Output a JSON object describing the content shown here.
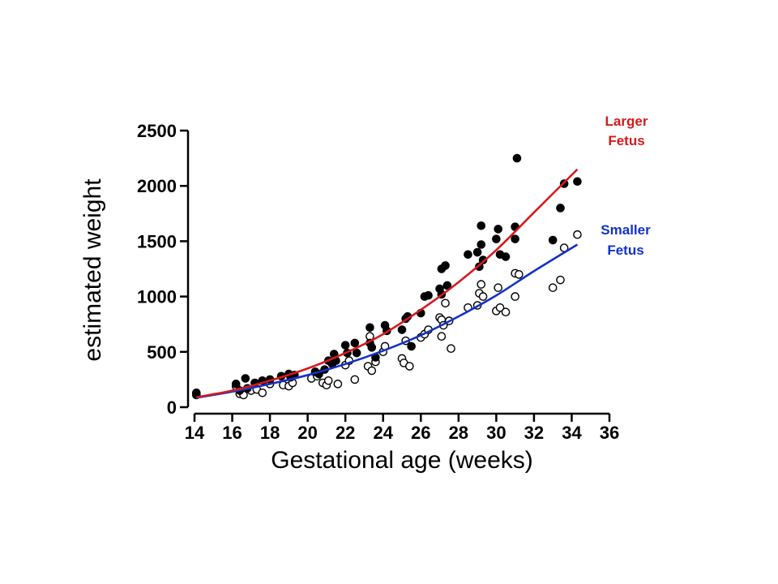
{
  "chart_data": {
    "type": "scatter",
    "xlabel": "Gestational age (weeks)",
    "ylabel": "estimated weight",
    "xlim": [
      14,
      36
    ],
    "ylim": [
      0,
      2500
    ],
    "x_ticks": [
      "14",
      "16",
      "18",
      "20",
      "22",
      "24",
      "26",
      "28",
      "30",
      "32",
      "34",
      "36"
    ],
    "y_ticks": [
      "0",
      "500",
      "1000",
      "1500",
      "2000",
      "2500"
    ],
    "grid": false,
    "series": [
      {
        "name": "Larger Fetus",
        "marker": "filled-circle",
        "marker_color": "#000000",
        "line_color": "#d7191c",
        "label_lines": [
          "Larger",
          "Fetus"
        ],
        "fit": [
          [
            14.1,
            90
          ],
          [
            16,
            150
          ],
          [
            18,
            240
          ],
          [
            20,
            350
          ],
          [
            22,
            490
          ],
          [
            24,
            660
          ],
          [
            26,
            880
          ],
          [
            28,
            1130
          ],
          [
            30,
            1420
          ],
          [
            32,
            1760
          ],
          [
            34.3,
            2150
          ]
        ],
        "points": [
          [
            14.1,
            130
          ],
          [
            14.1,
            120
          ],
          [
            16.2,
            210
          ],
          [
            16.4,
            150
          ],
          [
            16.7,
            260
          ],
          [
            16.8,
            170
          ],
          [
            17.2,
            220
          ],
          [
            17.6,
            240
          ],
          [
            18,
            250
          ],
          [
            18.6,
            280
          ],
          [
            19,
            300
          ],
          [
            19.1,
            270
          ],
          [
            19.3,
            290
          ],
          [
            20.4,
            320
          ],
          [
            20.6,
            300
          ],
          [
            20.9,
            340
          ],
          [
            21.1,
            420
          ],
          [
            21.3,
            390
          ],
          [
            21.4,
            480
          ],
          [
            21.5,
            420
          ],
          [
            22,
            560
          ],
          [
            22.1,
            490
          ],
          [
            22.5,
            580
          ],
          [
            22.6,
            490
          ],
          [
            23.3,
            720
          ],
          [
            23.3,
            580
          ],
          [
            23.4,
            540
          ],
          [
            23.6,
            450
          ],
          [
            24.1,
            740
          ],
          [
            24.2,
            690
          ],
          [
            25,
            700
          ],
          [
            25.2,
            800
          ],
          [
            25.3,
            820
          ],
          [
            25.5,
            550
          ],
          [
            26,
            850
          ],
          [
            26.2,
            1000
          ],
          [
            26.4,
            1010
          ],
          [
            27,
            1070
          ],
          [
            27.1,
            1250
          ],
          [
            27.3,
            1280
          ],
          [
            27.4,
            1100
          ],
          [
            27.1,
            1020
          ],
          [
            28.5,
            1380
          ],
          [
            29,
            1400
          ],
          [
            29.1,
            1270
          ],
          [
            29.2,
            1640
          ],
          [
            29.2,
            1470
          ],
          [
            29.3,
            1330
          ],
          [
            30,
            1520
          ],
          [
            30.1,
            1610
          ],
          [
            30.2,
            1380
          ],
          [
            30.5,
            1360
          ],
          [
            31,
            1630
          ],
          [
            31,
            1520
          ],
          [
            31.1,
            2250
          ],
          [
            33,
            1510
          ],
          [
            33.4,
            1800
          ],
          [
            33.6,
            2020
          ],
          [
            34.3,
            2040
          ]
        ]
      },
      {
        "name": "Smaller Fetus",
        "marker": "open-circle",
        "marker_color": "#000000",
        "line_color": "#1432c8",
        "label_lines": [
          "Smaller",
          "Fetus"
        ],
        "fit": [
          [
            14.1,
            85
          ],
          [
            16,
            140
          ],
          [
            18,
            210
          ],
          [
            20,
            290
          ],
          [
            22,
            390
          ],
          [
            24,
            510
          ],
          [
            26,
            650
          ],
          [
            28,
            820
          ],
          [
            30,
            1010
          ],
          [
            32,
            1230
          ],
          [
            34.3,
            1470
          ]
        ],
        "points": [
          [
            14.1,
            110
          ],
          [
            16.2,
            190
          ],
          [
            16.4,
            120
          ],
          [
            16.6,
            110
          ],
          [
            17,
            150
          ],
          [
            17.3,
            160
          ],
          [
            17.6,
            130
          ],
          [
            18,
            210
          ],
          [
            18.7,
            200
          ],
          [
            19,
            190
          ],
          [
            19.2,
            220
          ],
          [
            20.2,
            260
          ],
          [
            20.5,
            280
          ],
          [
            20.8,
            220
          ],
          [
            21,
            200
          ],
          [
            21.1,
            240
          ],
          [
            21.6,
            210
          ],
          [
            22,
            380
          ],
          [
            22.2,
            420
          ],
          [
            22.5,
            250
          ],
          [
            23.2,
            370
          ],
          [
            23.3,
            640
          ],
          [
            23.4,
            330
          ],
          [
            23.6,
            410
          ],
          [
            24,
            500
          ],
          [
            24.1,
            550
          ],
          [
            25,
            440
          ],
          [
            25.1,
            400
          ],
          [
            25.2,
            600
          ],
          [
            25.4,
            370
          ],
          [
            26,
            630
          ],
          [
            26.2,
            660
          ],
          [
            26.4,
            700
          ],
          [
            27,
            810
          ],
          [
            27.1,
            790
          ],
          [
            27.1,
            640
          ],
          [
            27.2,
            740
          ],
          [
            27.3,
            940
          ],
          [
            27.5,
            780
          ],
          [
            27.6,
            530
          ],
          [
            28.5,
            900
          ],
          [
            29,
            920
          ],
          [
            29.1,
            1030
          ],
          [
            29.2,
            1110
          ],
          [
            29.3,
            1000
          ],
          [
            30,
            870
          ],
          [
            30.1,
            1080
          ],
          [
            30.2,
            900
          ],
          [
            30.5,
            860
          ],
          [
            31,
            1000
          ],
          [
            31,
            1210
          ],
          [
            31.2,
            1200
          ],
          [
            33,
            1080
          ],
          [
            33.4,
            1150
          ],
          [
            33.6,
            1440
          ],
          [
            34.3,
            1560
          ]
        ]
      }
    ]
  }
}
